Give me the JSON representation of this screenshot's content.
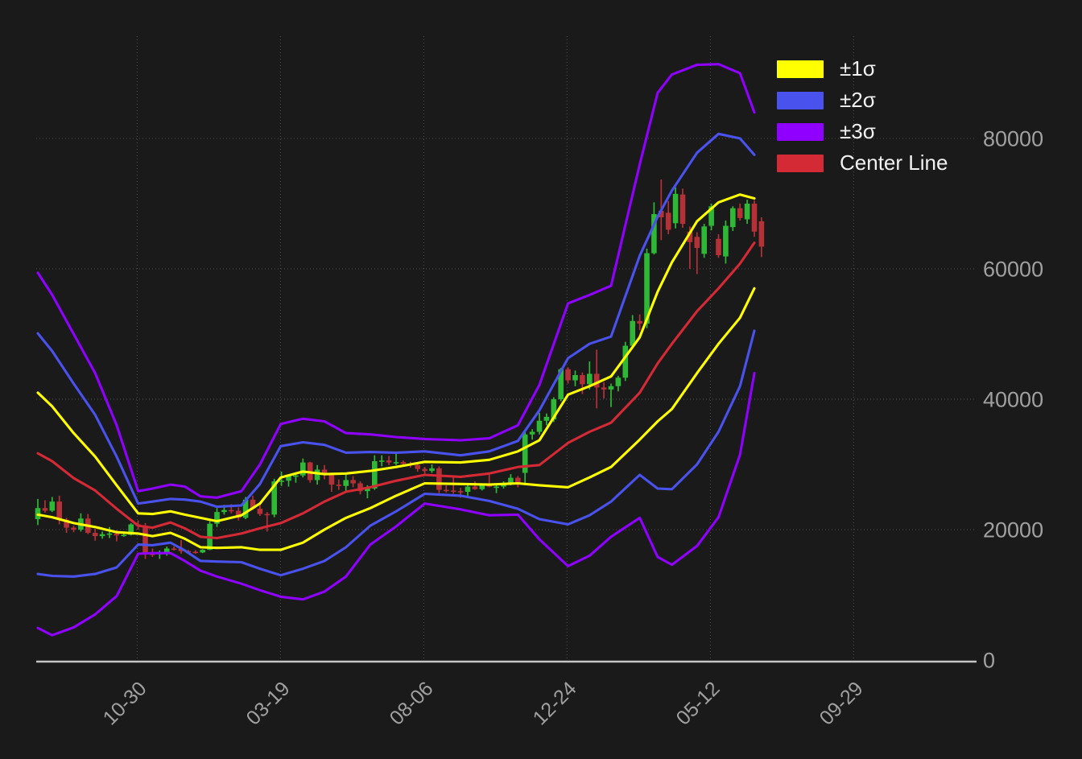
{
  "chart_data": {
    "type": "candlestick",
    "description": "Weekly OHLC candles with volatility bands (center line ±1/2/3 sigma), prices in USD",
    "legend_position": "upper right",
    "grid": true,
    "legend": [
      {
        "label": "±1σ",
        "color": "#ffff00"
      },
      {
        "label": "±2σ",
        "color": "#4a52ee"
      },
      {
        "label": "±3σ",
        "color": "#8f00ff"
      },
      {
        "label": "Center Line",
        "color": "#d42a35"
      }
    ],
    "colors": {
      "background": "#1a1a1a",
      "grid": "#4f4f4f",
      "axis_line": "#c4c4c4",
      "tick_label": "#a0a0a0",
      "legend_text": "#f2f2f2",
      "candle_up": "#2fb836",
      "candle_down": "#b53138",
      "band1": "#ffff00",
      "band2": "#4a52ee",
      "band3": "#8f00ff",
      "center": "#d42a35"
    },
    "y_axis": {
      "ticks": [
        0,
        20000,
        40000,
        60000,
        80000
      ],
      "tick_labels": [
        "0",
        "20000",
        "40000",
        "60000",
        "80000"
      ],
      "range": [
        0,
        95800
      ]
    },
    "x_axis": {
      "tick_labels": [
        "10-30",
        "03-19",
        "08-06",
        "12-24",
        "05-12",
        "09-29"
      ],
      "tick_indices": [
        13.86,
        33.86,
        53.86,
        73.86,
        93.86,
        113.86
      ]
    },
    "candles_ohlc": [
      [
        21600,
        24700,
        20700,
        23300
      ],
      [
        23300,
        24500,
        22600,
        22900
      ],
      [
        22900,
        25000,
        22700,
        24300
      ],
      [
        24300,
        25200,
        20800,
        21500
      ],
      [
        21500,
        21800,
        19500,
        20300
      ],
      [
        20300,
        20600,
        19600,
        20000
      ],
      [
        20000,
        22500,
        19700,
        21700
      ],
      [
        21700,
        22400,
        19300,
        19500
      ],
      [
        19500,
        20100,
        18300,
        19000
      ],
      [
        19000,
        19700,
        18600,
        19300
      ],
      [
        19300,
        20400,
        18700,
        19400
      ],
      [
        19400,
        19900,
        18200,
        19100
      ],
      [
        19100,
        19600,
        18900,
        19200
      ],
      [
        19200,
        21000,
        19100,
        20800
      ],
      [
        20800,
        21400,
        20000,
        20600
      ],
      [
        20600,
        21000,
        15500,
        16300
      ],
      [
        16300,
        17100,
        15800,
        16200
      ],
      [
        16200,
        16800,
        15500,
        16500
      ],
      [
        16500,
        17400,
        16000,
        17100
      ],
      [
        17100,
        17400,
        16800,
        17050
      ],
      [
        17050,
        18400,
        16300,
        16700
      ],
      [
        16700,
        16900,
        16450,
        16600
      ],
      [
        16600,
        16850,
        16300,
        16500
      ],
      [
        16500,
        17000,
        16400,
        16900
      ],
      [
        16900,
        21300,
        16850,
        20900
      ],
      [
        20900,
        23300,
        20400,
        22700
      ],
      [
        22700,
        23800,
        22300,
        23000
      ],
      [
        23000,
        23900,
        22500,
        22900
      ],
      [
        22900,
        23400,
        21400,
        21800
      ],
      [
        21800,
        25000,
        21600,
        24600
      ],
      [
        24600,
        25200,
        23000,
        23200
      ],
      [
        23200,
        23900,
        22100,
        22400
      ],
      [
        22400,
        22700,
        19700,
        22300
      ],
      [
        22300,
        27800,
        21900,
        27400
      ],
      [
        27400,
        28900,
        26700,
        27500
      ],
      [
        27500,
        28500,
        26600,
        28200
      ],
      [
        28200,
        28800,
        27200,
        28300
      ],
      [
        28300,
        30900,
        28000,
        30300
      ],
      [
        30300,
        30400,
        27200,
        27600
      ],
      [
        27600,
        29900,
        26900,
        29200
      ],
      [
        29200,
        29900,
        27700,
        28600
      ],
      [
        28600,
        28700,
        25800,
        26900
      ],
      [
        26900,
        27700,
        26100,
        26700
      ],
      [
        26700,
        28400,
        25900,
        27600
      ],
      [
        27600,
        28200,
        26500,
        27100
      ],
      [
        27100,
        27400,
        25400,
        25900
      ],
      [
        25900,
        26800,
        24800,
        26300
      ],
      [
        26300,
        31400,
        26100,
        30500
      ],
      [
        30500,
        31400,
        29700,
        30600
      ],
      [
        30600,
        31300,
        29900,
        30300
      ],
      [
        30300,
        31800,
        29900,
        30350
      ],
      [
        30350,
        30600,
        29800,
        30100
      ],
      [
        30100,
        30400,
        29500,
        29900
      ],
      [
        29900,
        30100,
        28900,
        29300
      ],
      [
        29300,
        29600,
        28600,
        29000
      ],
      [
        29000,
        30000,
        28700,
        29400
      ],
      [
        29400,
        29700,
        25600,
        26100
      ],
      [
        26100,
        26800,
        25700,
        26000
      ],
      [
        26000,
        28100,
        25500,
        25900
      ],
      [
        25900,
        26400,
        24900,
        25800
      ],
      [
        25800,
        26900,
        24950,
        26600
      ],
      [
        26600,
        27400,
        26100,
        26200
      ],
      [
        26200,
        27100,
        26000,
        27000
      ],
      [
        27000,
        28600,
        26500,
        26600
      ],
      [
        26600,
        26900,
        25600,
        26600
      ],
      [
        26600,
        27400,
        26300,
        27000
      ],
      [
        27000,
        28500,
        26800,
        27950
      ],
      [
        27950,
        28200,
        26500,
        26900
      ],
      [
        28700,
        35000,
        26800,
        34600
      ],
      [
        34600,
        35400,
        33800,
        35000
      ],
      [
        35000,
        37900,
        34600,
        36700
      ],
      [
        36700,
        37800,
        36000,
        37300
      ],
      [
        36900,
        40300,
        36500,
        40000
      ],
      [
        40000,
        44800,
        39700,
        44600
      ],
      [
        44600,
        44900,
        42400,
        42900
      ],
      [
        42900,
        44400,
        42000,
        43700
      ],
      [
        43700,
        44100,
        40800,
        42300
      ],
      [
        42300,
        45800,
        41500,
        43900
      ],
      [
        43900,
        47600,
        38600,
        41800
      ],
      [
        41800,
        42600,
        40100,
        41500
      ],
      [
        41500,
        42400,
        38800,
        42000
      ],
      [
        42000,
        43600,
        41200,
        43300
      ],
      [
        43300,
        48800,
        42800,
        48200
      ],
      [
        48200,
        52900,
        47800,
        52000
      ],
      [
        52000,
        53000,
        50600,
        51600
      ],
      [
        51600,
        63100,
        50900,
        62400
      ],
      [
        62400,
        70200,
        62200,
        68400
      ],
      [
        68900,
        73700,
        64400,
        67900
      ],
      [
        68600,
        70400,
        65300,
        66000
      ],
      [
        67000,
        72500,
        66200,
        71500
      ],
      [
        71400,
        72300,
        66300,
        66900
      ],
      [
        65700,
        66500,
        60000,
        64100
      ],
      [
        64900,
        65600,
        59200,
        63200
      ],
      [
        62300,
        66900,
        61700,
        66500
      ],
      [
        66600,
        70000,
        65900,
        69600
      ],
      [
        64600,
        65300,
        61700,
        62100
      ],
      [
        61900,
        67400,
        60800,
        66600
      ],
      [
        66400,
        69600,
        65800,
        69300
      ],
      [
        69300,
        70000,
        67400,
        67800
      ],
      [
        67600,
        70600,
        66900,
        70000
      ],
      [
        70000,
        70500,
        64900,
        65700
      ],
      [
        67300,
        67900,
        61800,
        63400
      ]
    ],
    "bands": {
      "indices": [
        0,
        2,
        5,
        8,
        11,
        14,
        16,
        18.5,
        20.5,
        22.7,
        25,
        28.4,
        31,
        33.9,
        37,
        40,
        43,
        46.4,
        50,
        54,
        59,
        63,
        67,
        70,
        74,
        77,
        80,
        84,
        86.5,
        88.5,
        92,
        95,
        98,
        100
      ],
      "upper3": [
        59400,
        56000,
        50000,
        44000,
        36000,
        25900,
        26300,
        26900,
        26600,
        25100,
        24900,
        25900,
        30000,
        36200,
        37000,
        36600,
        34800,
        34600,
        34200,
        33900,
        33700,
        34000,
        36000,
        42200,
        54700,
        56000,
        57400,
        76000,
        87000,
        89800,
        91300,
        91400,
        90000,
        84000
      ],
      "upper2": [
        50100,
        47400,
        42400,
        37600,
        31200,
        24000,
        24300,
        24700,
        24600,
        24300,
        23500,
        23700,
        27000,
        32800,
        33400,
        33000,
        31800,
        31900,
        31800,
        32000,
        31400,
        32000,
        33600,
        38300,
        46300,
        48500,
        49600,
        62000,
        68000,
        72000,
        77800,
        80700,
        80000,
        77500
      ],
      "upper1": [
        41000,
        38900,
        34800,
        31200,
        26800,
        22500,
        22400,
        22800,
        22300,
        21800,
        21300,
        22200,
        24000,
        28000,
        28900,
        28500,
        28600,
        29000,
        29600,
        30400,
        30300,
        30700,
        32000,
        33700,
        40700,
        42000,
        43500,
        49500,
        56500,
        61000,
        67300,
        70200,
        71400,
        70800
      ],
      "center": [
        31700,
        30500,
        27900,
        26000,
        23200,
        20600,
        20300,
        21100,
        20200,
        18900,
        18700,
        19400,
        20200,
        21000,
        22500,
        24300,
        25800,
        26500,
        27500,
        28400,
        28100,
        28600,
        29600,
        29900,
        33300,
        35000,
        36400,
        41000,
        45500,
        48500,
        53500,
        57000,
        60800,
        64000
      ],
      "lower1": [
        22300,
        21900,
        21000,
        20400,
        19600,
        19400,
        19000,
        19500,
        18600,
        17300,
        17200,
        17300,
        16900,
        16900,
        18000,
        20000,
        21800,
        23300,
        25200,
        27100,
        27000,
        26900,
        27100,
        26800,
        26500,
        28000,
        29600,
        33800,
        36600,
        38500,
        44000,
        48500,
        52500,
        57000
      ],
      "lower2": [
        13200,
        12900,
        12800,
        13200,
        14200,
        17700,
        17600,
        18000,
        16800,
        15200,
        15100,
        15000,
        14000,
        13000,
        14000,
        15200,
        17300,
        20600,
        22800,
        25500,
        25200,
        24400,
        23200,
        21600,
        20800,
        22200,
        24300,
        28400,
        26300,
        26200,
        30000,
        35000,
        42000,
        50500
      ],
      "lower3": [
        4900,
        3800,
        5000,
        7000,
        9800,
        16300,
        16400,
        16400,
        15200,
        13700,
        12800,
        11700,
        10700,
        9700,
        9300,
        10500,
        12800,
        17700,
        20500,
        24000,
        23100,
        22200,
        22300,
        18500,
        14400,
        16000,
        18900,
        21800,
        15800,
        14600,
        17500,
        21900,
        31500,
        44000
      ]
    }
  }
}
